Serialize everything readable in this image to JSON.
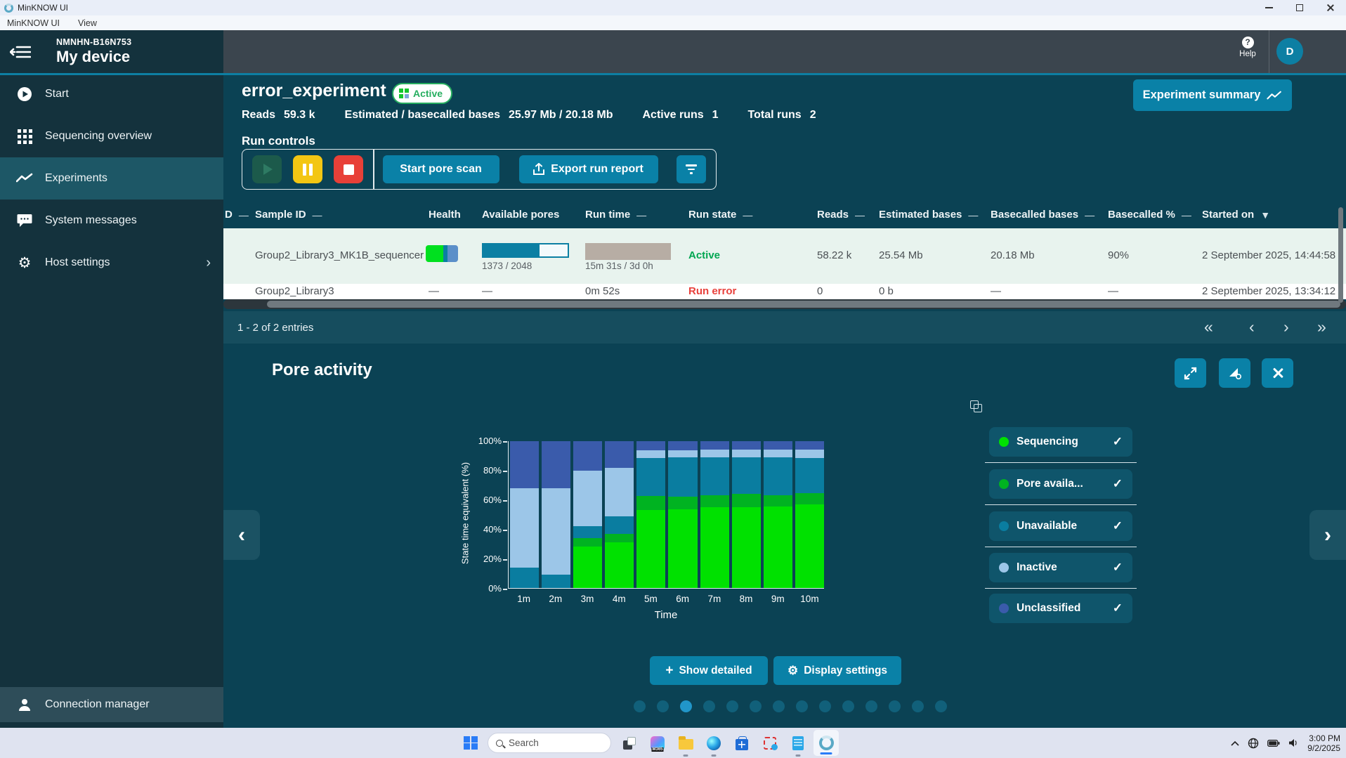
{
  "window": {
    "title": "MinKNOW UI",
    "menu": [
      "MinKNOW UI",
      "View"
    ]
  },
  "sidebar": {
    "device_id": "NMNHN-B16N753",
    "device_name": "My device",
    "items": [
      {
        "label": "Start"
      },
      {
        "label": "Sequencing overview"
      },
      {
        "label": "Experiments"
      },
      {
        "label": "System messages"
      },
      {
        "label": "Host settings"
      }
    ],
    "host_settings_chevron": "›",
    "bottom_item": {
      "label": "Connection manager"
    }
  },
  "topbar": {
    "help_label": "Help",
    "avatar_initial": "D"
  },
  "experiment": {
    "name": "error_experiment",
    "status_badge": "Active",
    "stats": [
      {
        "label": "Reads",
        "value": "59.3 k"
      },
      {
        "label": "Estimated / basecalled bases",
        "value": "25.97 Mb / 20.18 Mb"
      },
      {
        "label": "Active runs",
        "value": "1"
      },
      {
        "label": "Total runs",
        "value": "2"
      }
    ],
    "summary_button": "Experiment summary",
    "run_controls_label": "Run controls",
    "start_pore_scan": "Start pore scan",
    "export_run_report": "Export run report"
  },
  "table": {
    "columns": [
      "D",
      "Sample ID",
      "Health",
      "Available pores",
      "Run time",
      "Run state",
      "Reads",
      "Estimated bases",
      "Basecalled bases",
      "Basecalled %",
      "Started on"
    ],
    "sort_dash": "—",
    "sort_desc": "▼",
    "rows": [
      {
        "sample_id": "Group2_Library3_MK1B_sequencer",
        "available_pores": "1373 / 2048",
        "pores_pct": 67,
        "run_time": "15m 31s / 3d 0h",
        "run_state": "Active",
        "reads": "58.22 k",
        "estimated_bases": "25.54 Mb",
        "basecalled_bases": "20.18 Mb",
        "basecalled_pct": "90%",
        "started_on": "2 September 2025, 14:44:58"
      },
      {
        "sample_id": "Group2_Library3",
        "health": "—",
        "available_pores": "—",
        "run_time": "0m 52s",
        "run_state": "Run error",
        "reads": "0",
        "estimated_bases": "0 b",
        "basecalled_bases": "—",
        "basecalled_pct": "—",
        "started_on": "2 September 2025, 13:34:12"
      }
    ],
    "pagination": "1 - 2 of 2 entries",
    "pager": {
      "first": "«",
      "prev": "‹",
      "next": "›",
      "last": "»"
    }
  },
  "pore_activity": {
    "title": "Pore activity",
    "nav_left": "‹",
    "nav_right": "›",
    "show_detailed": "Show detailed",
    "display_settings": "Display settings",
    "plus_glyph": "+",
    "gear_glyph": "⚙",
    "check_glyph": "✓",
    "dots_total": 14,
    "active_dot": 3
  },
  "chart_data": {
    "type": "bar",
    "stacked": true,
    "title": "Pore activity",
    "xlabel": "Time",
    "ylabel": "State time equivalent (%)",
    "ylim": [
      0,
      100
    ],
    "yticks": [
      "0%",
      "20%",
      "40%",
      "60%",
      "80%",
      "100%"
    ],
    "categories": [
      "1m",
      "2m",
      "3m",
      "4m",
      "5m",
      "6m",
      "7m",
      "8m",
      "9m",
      "10m"
    ],
    "series": [
      {
        "name": "Sequencing",
        "color": "#00e100",
        "values": [
          0,
          0,
          28,
          31,
          53,
          53.5,
          55,
          55,
          55.5,
          57
        ]
      },
      {
        "name": "Pore available",
        "color": "#00b321",
        "values": [
          0,
          0,
          6,
          6,
          9.5,
          8.5,
          8,
          9,
          7.5,
          7.5
        ]
      },
      {
        "name": "Unavailable",
        "color": "#0a7da0",
        "values": [
          14,
          9,
          8,
          12,
          26,
          27,
          26,
          25,
          26,
          24
        ]
      },
      {
        "name": "Inactive",
        "color": "#9cc6e8",
        "values": [
          54,
          59,
          38,
          33,
          5.5,
          5,
          5.5,
          5.5,
          5.5,
          6
        ]
      },
      {
        "name": "Unclassified",
        "color": "#3a5bab",
        "values": [
          32,
          32,
          20,
          18,
          6,
          6,
          5.5,
          5.5,
          5.5,
          5.5
        ]
      }
    ],
    "legend": [
      {
        "label": "Sequencing",
        "color": "#00e100"
      },
      {
        "label": "Pore availa...",
        "color": "#00b321"
      },
      {
        "label": "Unavailable",
        "color": "#0a7da0"
      },
      {
        "label": "Inactive",
        "color": "#9cc6e8"
      },
      {
        "label": "Unclassified",
        "color": "#3a5bab"
      }
    ],
    "legend_position": "right",
    "grid": false
  },
  "taskbar": {
    "search_placeholder": "Search",
    "copilot_badge": "M365",
    "time": "3:00 PM",
    "date": "9/2/2025"
  }
}
